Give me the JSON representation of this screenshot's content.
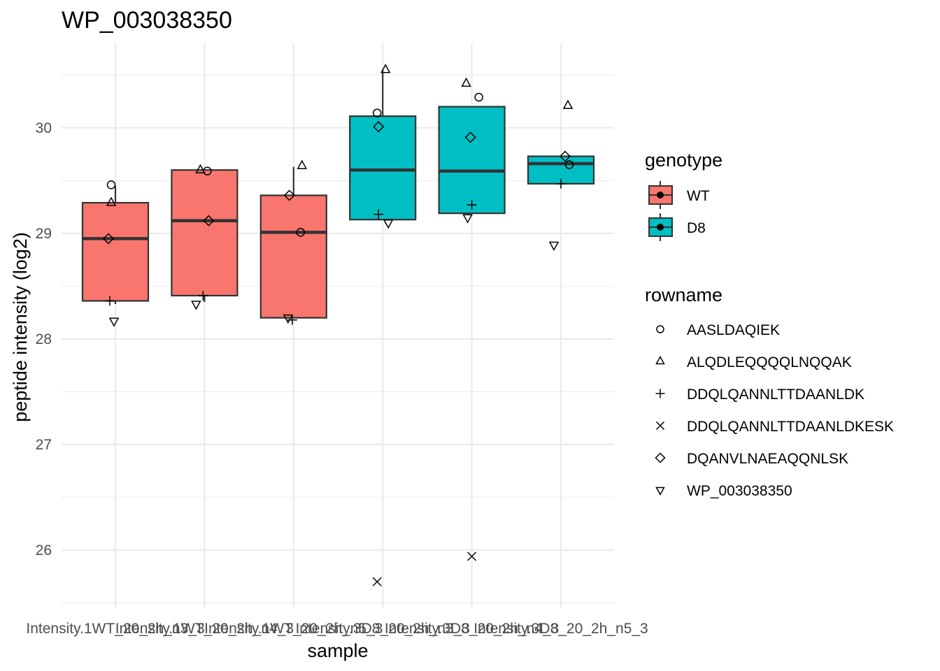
{
  "chart_data": {
    "type": "box",
    "title": "WP_003038350",
    "xlabel": "sample",
    "ylabel": "peptide intensity (log2)",
    "ylim": [
      25.45,
      30.8
    ],
    "yticks": [
      26,
      27,
      28,
      29,
      30
    ],
    "grid": true,
    "categories": [
      "Intensity.1WT_20_2h_n3_3",
      "Intensity.1WT_20_2h_n4_3",
      "Intensity.1WT_20_2h_n5_3",
      "Intensity.3D8_20_2h_n3_3",
      "Intensity.3D8_20_2h_n4_3",
      "Intensity.3D8_20_2h_n5_3"
    ],
    "fill_legend": {
      "title": "genotype",
      "entries": [
        {
          "name": "WT",
          "color": "#F8766D"
        },
        {
          "name": "D8",
          "color": "#00BFC4"
        }
      ]
    },
    "shape_legend": {
      "title": "rowname",
      "entries": [
        {
          "name": "AASLDAQIEK",
          "shape": "circle"
        },
        {
          "name": "ALQDLEQQQQLNQQAK",
          "shape": "triangle"
        },
        {
          "name": "DDQLQANNLTTDAANLDK",
          "shape": "plus"
        },
        {
          "name": "DDQLQANNLTTDAANLDKESK",
          "shape": "cross"
        },
        {
          "name": "DQANVLNAEAQQNLSK",
          "shape": "diamond"
        },
        {
          "name": "WP_003038350",
          "shape": "triangle-down"
        }
      ]
    },
    "boxes": [
      {
        "genotype": "WT",
        "lower_whisker": 28.33,
        "q1": 28.36,
        "median": 28.95,
        "q3": 29.29,
        "upper_whisker": 29.45
      },
      {
        "genotype": "WT",
        "lower_whisker": 28.35,
        "q1": 28.41,
        "median": 29.12,
        "q3": 29.6,
        "upper_whisker": 29.6
      },
      {
        "genotype": "WT",
        "lower_whisker": 28.2,
        "q1": 28.2,
        "median": 29.01,
        "q3": 29.36,
        "upper_whisker": 29.63
      },
      {
        "genotype": "D8",
        "lower_whisker": 29.13,
        "q1": 29.13,
        "median": 29.6,
        "q3": 30.11,
        "upper_whisker": 30.55
      },
      {
        "genotype": "D8",
        "lower_whisker": 29.19,
        "q1": 29.19,
        "median": 29.59,
        "q3": 30.2,
        "upper_whisker": 30.2
      },
      {
        "genotype": "D8",
        "lower_whisker": 29.47,
        "q1": 29.47,
        "median": 29.66,
        "q3": 29.73,
        "upper_whisker": 29.73
      }
    ],
    "points": [
      {
        "sample": 0,
        "rowname": "AASLDAQIEK",
        "y": 29.46
      },
      {
        "sample": 0,
        "rowname": "ALQDLEQQQQLNQQAK",
        "y": 29.29
      },
      {
        "sample": 0,
        "rowname": "DDQLQANNLTTDAANLDK",
        "y": 28.36
      },
      {
        "sample": 0,
        "rowname": "DQANVLNAEAQQNLSK",
        "y": 28.95
      },
      {
        "sample": 0,
        "rowname": "WP_003038350",
        "y": 28.17
      },
      {
        "sample": 1,
        "rowname": "AASLDAQIEK",
        "y": 29.59
      },
      {
        "sample": 1,
        "rowname": "ALQDLEQQQQLNQQAK",
        "y": 29.6
      },
      {
        "sample": 1,
        "rowname": "DDQLQANNLTTDAANLDK",
        "y": 28.41
      },
      {
        "sample": 1,
        "rowname": "DQANVLNAEAQQNLSK",
        "y": 29.12
      },
      {
        "sample": 1,
        "rowname": "WP_003038350",
        "y": 28.33
      },
      {
        "sample": 2,
        "rowname": "AASLDAQIEK",
        "y": 29.01
      },
      {
        "sample": 2,
        "rowname": "ALQDLEQQQQLNQQAK",
        "y": 29.64
      },
      {
        "sample": 2,
        "rowname": "DDQLQANNLTTDAANLDK",
        "y": 28.18
      },
      {
        "sample": 2,
        "rowname": "DQANVLNAEAQQNLSK",
        "y": 29.36
      },
      {
        "sample": 2,
        "rowname": "WP_003038350",
        "y": 28.2
      },
      {
        "sample": 3,
        "rowname": "AASLDAQIEK",
        "y": 30.14
      },
      {
        "sample": 3,
        "rowname": "ALQDLEQQQQLNQQAK",
        "y": 30.55
      },
      {
        "sample": 3,
        "rowname": "DDQLQANNLTTDAANLDK",
        "y": 29.18
      },
      {
        "sample": 3,
        "rowname": "DDQLQANNLTTDAANLDKESK",
        "y": 25.7
      },
      {
        "sample": 3,
        "rowname": "DQANVLNAEAQQNLSK",
        "y": 30.01
      },
      {
        "sample": 3,
        "rowname": "WP_003038350",
        "y": 29.1
      },
      {
        "sample": 4,
        "rowname": "AASLDAQIEK",
        "y": 30.29
      },
      {
        "sample": 4,
        "rowname": "ALQDLEQQQQLNQQAK",
        "y": 30.42
      },
      {
        "sample": 4,
        "rowname": "DDQLQANNLTTDAANLDK",
        "y": 29.27
      },
      {
        "sample": 4,
        "rowname": "DDQLQANNLTTDAANLDKESK",
        "y": 25.94
      },
      {
        "sample": 4,
        "rowname": "DQANVLNAEAQQNLSK",
        "y": 29.91
      },
      {
        "sample": 4,
        "rowname": "WP_003038350",
        "y": 29.15
      },
      {
        "sample": 5,
        "rowname": "AASLDAQIEK",
        "y": 29.65
      },
      {
        "sample": 5,
        "rowname": "ALQDLEQQQQLNQQAK",
        "y": 30.21
      },
      {
        "sample": 5,
        "rowname": "DDQLQANNLTTDAANLDK",
        "y": 29.47
      },
      {
        "sample": 5,
        "rowname": "DQANVLNAEAQQNLSK",
        "y": 29.73
      },
      {
        "sample": 5,
        "rowname": "WP_003038350",
        "y": 28.89
      }
    ]
  }
}
